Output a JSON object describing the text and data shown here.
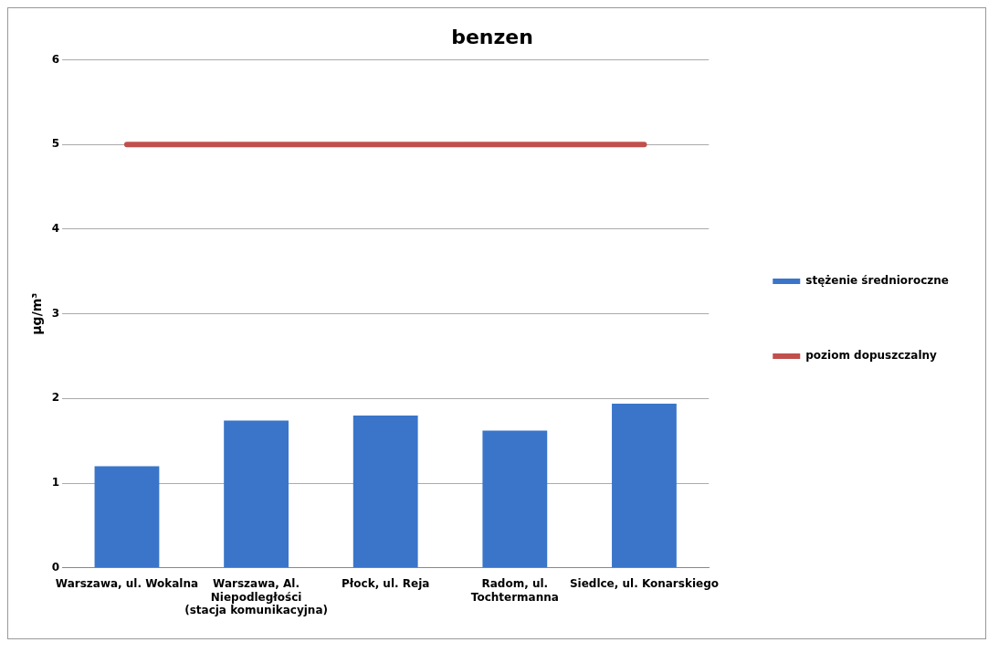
{
  "chart_data": {
    "type": "bar",
    "title": "benzen",
    "ylabel": "µg/m³",
    "categories": [
      "Warszawa, ul. Wokalna",
      "Warszawa, Al.\nNiepodległości\n(stacja komunikacyjna)",
      "Płock, ul. Reja",
      "Radom, ul.\nTochtermanna",
      "Siedlce, ul. Konarskiego"
    ],
    "series": [
      {
        "name": "stężenie średnioroczne",
        "color": "#3a75c9",
        "values": [
          1.2,
          1.74,
          1.8,
          1.62,
          1.94
        ]
      },
      {
        "name": "poziom dopuszczalny",
        "type": "line",
        "color": "#c0504d",
        "values": [
          5,
          5,
          5,
          5,
          5
        ]
      }
    ],
    "ylim": [
      0,
      6
    ],
    "yticks": [
      0,
      1,
      2,
      3,
      4,
      5,
      6
    ],
    "grid": "y",
    "legend": "right",
    "marker": "none"
  }
}
